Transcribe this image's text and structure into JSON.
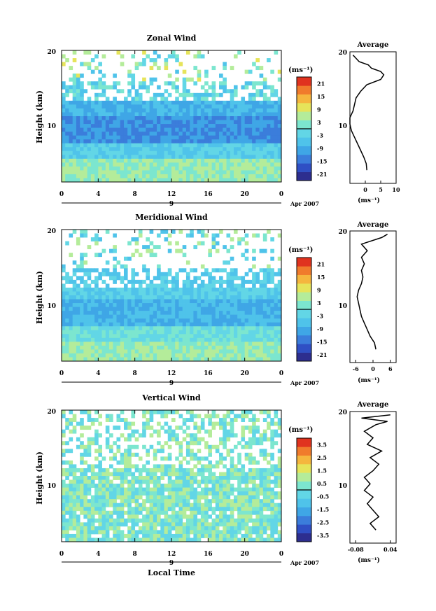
{
  "chart_data": [
    {
      "type": "heatmap",
      "title": "Zonal Wind",
      "ylabel": "Height (km)",
      "y_ticks": [
        "20",
        "10"
      ],
      "x_ticks": [
        "0",
        "4",
        "8",
        "12",
        "16",
        "20",
        "0"
      ],
      "date_day": "9",
      "date_label": "Apr 2007",
      "xlim": [
        0,
        24
      ],
      "ylim": [
        1.5,
        20
      ],
      "colorbar_unit": "(ms⁻¹)",
      "colorbar_ticks": [
        "21",
        "15",
        "9",
        "3",
        "-3",
        "-9",
        "-15",
        "-21"
      ],
      "colorbar_range": [
        -24,
        24
      ],
      "average": {
        "title": "Average",
        "xlabel": "(ms⁻¹)",
        "x_ticks": [
          "0",
          "5",
          "10"
        ],
        "y_ticks": [
          "20",
          "10"
        ],
        "xlim": [
          -5,
          10
        ],
        "profile": [
          [
            0.5,
            2
          ],
          [
            0.3,
            3
          ],
          [
            -0.5,
            4
          ],
          [
            -1.5,
            5
          ],
          [
            -2.5,
            6
          ],
          [
            -3.5,
            7
          ],
          [
            -4.5,
            8
          ],
          [
            -5,
            9
          ],
          [
            -5,
            10
          ],
          [
            -4,
            11
          ],
          [
            -3.5,
            12
          ],
          [
            -3,
            13
          ],
          [
            -1.5,
            14
          ],
          [
            0.5,
            15
          ],
          [
            5,
            15.8
          ],
          [
            6,
            16.5
          ],
          [
            5,
            17
          ],
          [
            2,
            17.5
          ],
          [
            1,
            18
          ],
          [
            -2,
            18.5
          ],
          [
            -3,
            19
          ],
          [
            -4,
            19.5
          ]
        ]
      }
    },
    {
      "type": "heatmap",
      "title": "Meridional Wind",
      "ylabel": "Height (km)",
      "y_ticks": [
        "20",
        "10"
      ],
      "x_ticks": [
        "0",
        "4",
        "8",
        "12",
        "16",
        "20",
        "0"
      ],
      "date_day": "9",
      "date_label": "Apr 2007",
      "xlim": [
        0,
        24
      ],
      "ylim": [
        1.5,
        20
      ],
      "colorbar_unit": "(ms⁻¹)",
      "colorbar_ticks": [
        "21",
        "15",
        "9",
        "3",
        "-3",
        "-9",
        "-15",
        "-21"
      ],
      "colorbar_range": [
        -24,
        24
      ],
      "average": {
        "title": "Average",
        "xlabel": "(ms⁻¹)",
        "x_ticks": [
          "-6",
          "0",
          "6"
        ],
        "y_ticks": [
          "20",
          "10"
        ],
        "xlim": [
          -8,
          8
        ],
        "profile": [
          [
            1,
            2
          ],
          [
            0.5,
            3
          ],
          [
            -1,
            4
          ],
          [
            -2,
            5
          ],
          [
            -3,
            6
          ],
          [
            -4,
            7
          ],
          [
            -4.5,
            8
          ],
          [
            -5,
            9
          ],
          [
            -5.5,
            10
          ],
          [
            -5,
            11
          ],
          [
            -4,
            12
          ],
          [
            -3.5,
            13
          ],
          [
            -4,
            14
          ],
          [
            -3,
            15
          ],
          [
            -4,
            16
          ],
          [
            -2,
            17
          ],
          [
            -4,
            18
          ],
          [
            3,
            19
          ],
          [
            5,
            19.5
          ]
        ]
      }
    },
    {
      "type": "heatmap",
      "title": "Vertical Wind",
      "ylabel": "Height (km)",
      "xlabel": "Local Time",
      "y_ticks": [
        "20",
        "10"
      ],
      "x_ticks": [
        "0",
        "4",
        "8",
        "12",
        "16",
        "20",
        "0"
      ],
      "date_day": "9",
      "date_label": "Apr 2007",
      "xlim": [
        0,
        24
      ],
      "ylim": [
        1.5,
        20
      ],
      "colorbar_unit": "(ms⁻¹)",
      "colorbar_ticks": [
        "3.5",
        "2.5",
        "1.5",
        "0.5",
        "-0.5",
        "-1.5",
        "-2.5",
        "-3.5"
      ],
      "colorbar_range": [
        -4,
        4
      ],
      "average": {
        "title": "Average",
        "xlabel": "(ms⁻¹)",
        "x_ticks": [
          "-0.08",
          "0.04"
        ],
        "y_ticks": [
          "20",
          "10"
        ],
        "xlim": [
          -0.1,
          0.06
        ],
        "profile": [
          [
            -0.01,
            2
          ],
          [
            -0.03,
            3
          ],
          [
            0.0,
            4
          ],
          [
            -0.02,
            5
          ],
          [
            -0.04,
            6
          ],
          [
            -0.02,
            7
          ],
          [
            -0.05,
            8
          ],
          [
            -0.03,
            9
          ],
          [
            -0.05,
            10
          ],
          [
            -0.02,
            11
          ],
          [
            0.0,
            12
          ],
          [
            -0.03,
            13
          ],
          [
            0.01,
            14
          ],
          [
            -0.04,
            15
          ],
          [
            -0.02,
            16
          ],
          [
            -0.05,
            17
          ],
          [
            -0.01,
            18
          ],
          [
            0.03,
            18.5
          ],
          [
            -0.06,
            19
          ],
          [
            0.04,
            19.5
          ]
        ]
      }
    }
  ],
  "colors": {
    "palette": [
      "#2d2e8f",
      "#2f4fc4",
      "#3b7ddb",
      "#3fa6e6",
      "#4fc3ea",
      "#62d6e6",
      "#7ce6cf",
      "#b4ec9a",
      "#e6e45a",
      "#f5b63e",
      "#f07b2c",
      "#e0331f"
    ]
  }
}
